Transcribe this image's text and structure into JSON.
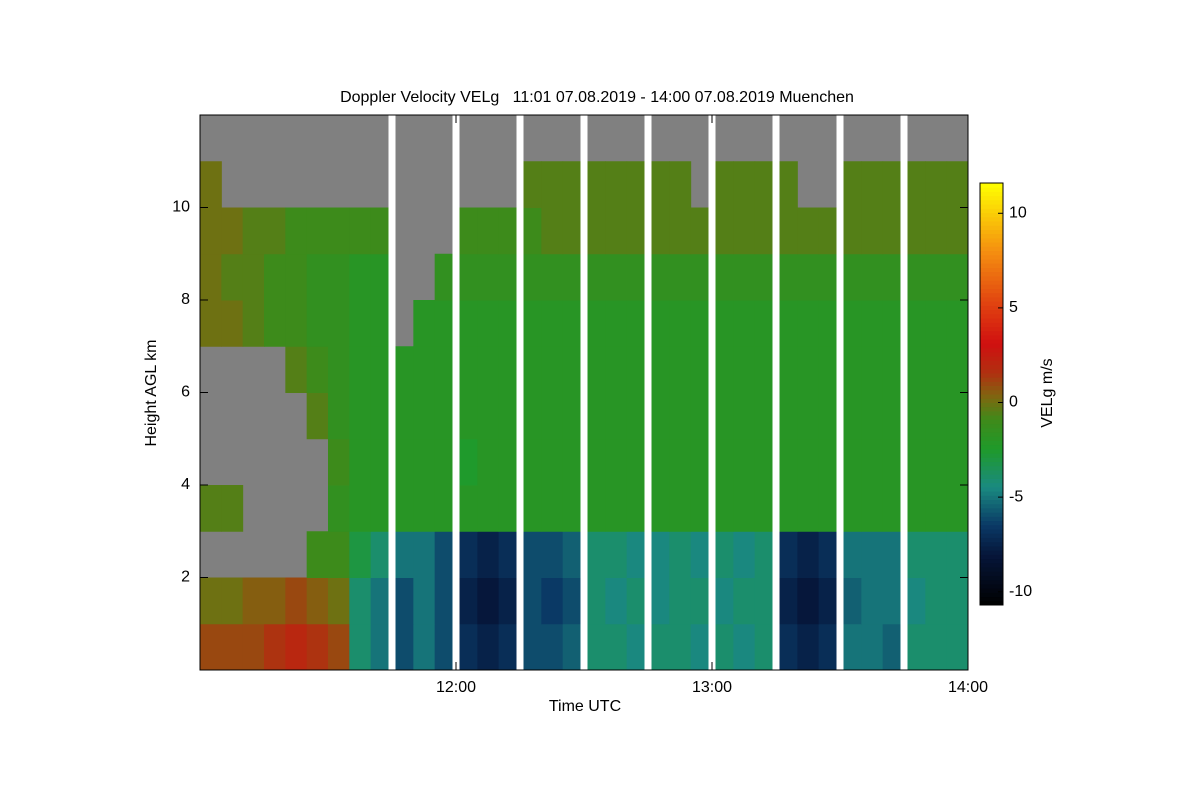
{
  "chart_data": {
    "type": "heatmap",
    "title": "Doppler Velocity VELg   11:01 07.08.2019 - 14:00 07.08.2019 Muenchen",
    "xlabel": "Time UTC",
    "ylabel": "Height AGL km",
    "colorbar_label": "VELg m/s",
    "xbins": [
      660,
      665,
      670,
      675,
      680,
      685,
      690,
      695,
      700,
      705,
      710,
      715,
      720,
      725,
      730,
      735,
      740,
      745,
      750,
      755,
      760,
      765,
      770,
      775,
      780,
      785,
      790,
      795,
      800,
      805,
      810,
      815,
      820,
      825,
      830,
      835,
      840
    ],
    "ybins": [
      0,
      1,
      2,
      3,
      4,
      5,
      6,
      7,
      8,
      9,
      10,
      11,
      12
    ],
    "values": [
      [
        1,
        1,
        1,
        1.5,
        2,
        1.5,
        1,
        -4,
        -5,
        -6,
        -5,
        -6,
        -7,
        -7.5,
        -7,
        -6,
        -6,
        -5.5,
        -4,
        -4,
        -4.5,
        -4,
        -4,
        -4.5,
        -4,
        -4.5,
        -4,
        -7,
        -7.5,
        -7,
        -5,
        -5,
        -5.5,
        -4,
        -4,
        -4
      ],
      [
        0,
        0,
        0.5,
        0.5,
        1,
        0.5,
        0,
        -4,
        -5,
        -6,
        -5,
        -6,
        -7.5,
        -8,
        -7.5,
        -6,
        -6.5,
        -6,
        -4,
        -4.5,
        -4,
        -4.5,
        -4,
        -4,
        -4.5,
        -4,
        -4,
        -7.5,
        -8,
        -7.5,
        -5.5,
        -5,
        -5,
        -4.5,
        -4,
        -4
      ],
      [
        null,
        null,
        null,
        null,
        null,
        -1,
        -1,
        -3,
        -4,
        -5,
        -5,
        -6,
        -7,
        -7.5,
        -7,
        -6,
        -6,
        -5.5,
        -4,
        -4,
        -4.5,
        -4.5,
        -4,
        -4.5,
        -4,
        -4.5,
        -4,
        -7,
        -7.5,
        -7,
        -5,
        -5,
        -5,
        -4,
        -4,
        -4
      ],
      [
        -0.5,
        -0.5,
        null,
        null,
        null,
        null,
        -1.5,
        -2,
        -2,
        -2,
        -2,
        -2,
        -2,
        -2,
        -2,
        -2,
        -2,
        -2,
        -2,
        -2,
        -2,
        -2,
        -2,
        -2,
        -2,
        -2,
        -2,
        -2,
        -2,
        -2,
        -2,
        -2,
        -2,
        -2,
        -2,
        -2
      ],
      [
        null,
        null,
        null,
        null,
        null,
        null,
        -1,
        -2,
        -2,
        -2,
        -2,
        -2,
        -2.5,
        -2,
        -2,
        -2,
        -2,
        -2,
        -2,
        -2,
        -2,
        -2,
        -2,
        -2,
        -2,
        -2,
        -2,
        -2,
        -2,
        -2,
        -2,
        -2,
        -2,
        -2,
        -2,
        -2
      ],
      [
        null,
        null,
        null,
        null,
        null,
        -0.5,
        -1.5,
        -2,
        -2,
        -2,
        -2,
        -2,
        -2,
        -2,
        -2,
        -2,
        -2,
        -2,
        -2,
        -2,
        -2,
        -2,
        -2,
        -2,
        -2,
        -2,
        -2,
        -2,
        -2,
        -2,
        -2,
        -2,
        -2,
        -2,
        -2,
        -2
      ],
      [
        null,
        null,
        null,
        null,
        -0.5,
        -1,
        -1.5,
        -2,
        -2,
        -2,
        -2,
        -2,
        -2,
        -2,
        -2,
        -2,
        -2,
        -2,
        -2,
        -2,
        -2,
        -2,
        -2,
        -2,
        -2,
        -2,
        -2,
        -2,
        -2,
        -2,
        -2,
        -2,
        -2,
        -2,
        -2,
        -2
      ],
      [
        0,
        0,
        -0.5,
        -1,
        -1,
        -1.5,
        -1.5,
        -2,
        -2,
        null,
        -2,
        -2,
        -2,
        -2,
        -2,
        -2,
        -2,
        -2,
        -2,
        -2,
        -2,
        -2,
        -2,
        -2,
        -2,
        -2,
        -2,
        -2,
        -2,
        -2,
        -2,
        -2,
        -2,
        -2,
        -2,
        -2
      ],
      [
        0,
        -0.5,
        -0.5,
        -1,
        -1,
        -1.5,
        -1.5,
        -2,
        -2,
        null,
        null,
        -1.5,
        -1.5,
        -1.5,
        -1.5,
        -1.5,
        -1.5,
        -1.5,
        -1.5,
        -1.5,
        -1.5,
        -1.5,
        -1.5,
        -1.5,
        -1.5,
        -1.5,
        -1.5,
        -1.5,
        -1.5,
        -1.5,
        -1.5,
        -1.5,
        -1.5,
        -1.5,
        -1.5,
        -1.5
      ],
      [
        0,
        0,
        -0.5,
        -0.5,
        -1,
        -1,
        -1,
        -1,
        -1,
        null,
        null,
        null,
        -1,
        -1,
        -1,
        -1,
        -0.5,
        -0.5,
        -0.5,
        -0.5,
        -0.5,
        -0.5,
        -0.5,
        -0.5,
        -0.5,
        -0.5,
        -0.5,
        -0.5,
        -0.5,
        -0.5,
        -0.5,
        -0.5,
        -0.5,
        -0.5,
        -0.5,
        -0.5
      ],
      [
        0,
        null,
        null,
        null,
        null,
        null,
        null,
        null,
        null,
        null,
        null,
        null,
        null,
        null,
        null,
        -0.5,
        -0.5,
        -0.5,
        -0.5,
        -0.5,
        -0.5,
        -0.5,
        -0.5,
        null,
        -0.5,
        -0.5,
        -0.5,
        -0.5,
        null,
        null,
        -0.5,
        -0.5,
        -0.5,
        -0.5,
        -0.5,
        -0.5
      ],
      [
        null,
        null,
        null,
        null,
        null,
        null,
        null,
        null,
        null,
        null,
        null,
        null,
        null,
        null,
        null,
        null,
        null,
        null,
        null,
        null,
        null,
        null,
        null,
        null,
        null,
        null,
        null,
        null,
        null,
        null,
        null,
        null,
        null,
        null,
        null,
        null
      ]
    ],
    "gaps": [
      705,
      720,
      735,
      750,
      765,
      780,
      795,
      810,
      825
    ],
    "xlim": [
      660,
      840
    ],
    "xticks": [
      {
        "value": 720,
        "label": "12:00"
      },
      {
        "value": 780,
        "label": "13:00"
      },
      {
        "value": 840,
        "label": "14:00"
      }
    ],
    "ylim": [
      0,
      12
    ],
    "yticks": [
      2,
      4,
      6,
      8,
      10
    ],
    "clim": [
      -10.7,
      11.6
    ],
    "cticks": [
      -10,
      -5,
      0,
      5,
      10
    ]
  }
}
